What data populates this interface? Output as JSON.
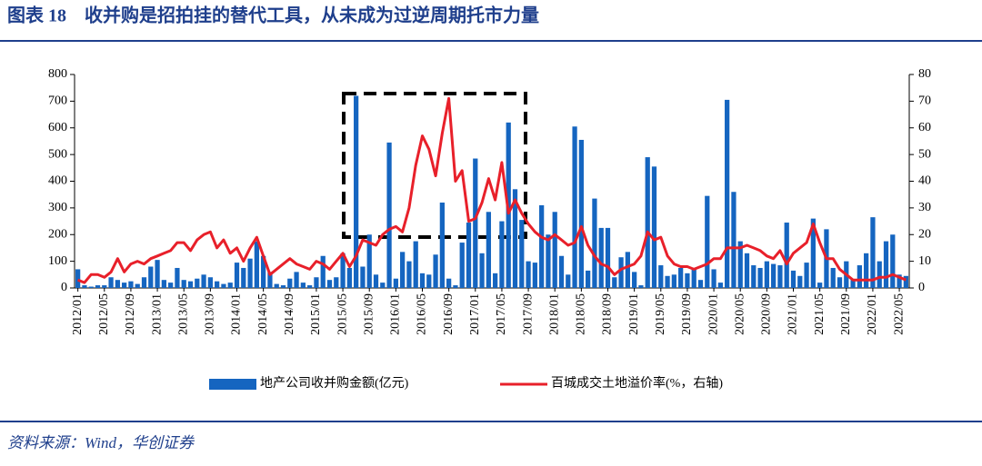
{
  "title": "图表 18　收并购是招拍挂的替代工具，从未成为过逆周期托市力量",
  "source": "资料来源：Wind，华创证券",
  "chart_data": {
    "type": "bar_line",
    "categories": [
      "2012/01",
      null,
      null,
      null,
      "2012/05",
      null,
      null,
      null,
      "2012/09",
      null,
      null,
      null,
      "2013/01",
      null,
      null,
      null,
      "2013/05",
      null,
      null,
      null,
      "2013/09",
      null,
      null,
      null,
      "2014/01",
      null,
      null,
      null,
      "2014/05",
      null,
      null,
      null,
      "2014/09",
      null,
      null,
      null,
      "2015/01",
      null,
      null,
      null,
      "2015/05",
      null,
      null,
      null,
      "2015/09",
      null,
      null,
      null,
      "2016/01",
      null,
      null,
      null,
      "2016/05",
      null,
      null,
      null,
      "2016/09",
      null,
      null,
      null,
      "2017/01",
      null,
      null,
      null,
      "2017/05",
      null,
      null,
      null,
      "2017/09",
      null,
      null,
      null,
      "2018/01",
      null,
      null,
      null,
      "2018/05",
      null,
      null,
      null,
      "2018/09",
      null,
      null,
      null,
      "2019/01",
      null,
      null,
      null,
      "2019/05",
      null,
      null,
      null,
      "2019/09",
      null,
      null,
      null,
      "2020/01",
      null,
      null,
      null,
      "2020/05",
      null,
      null,
      null,
      "2020/09",
      null,
      null,
      null,
      "2021/01",
      null,
      null,
      null,
      "2021/05",
      null,
      null,
      null,
      "2021/09",
      null,
      null,
      null,
      "2022/01",
      null,
      null,
      null,
      "2022/05",
      null
    ],
    "series": [
      {
        "name": "地产公司收并购金额(亿元)",
        "type": "bar",
        "color": "#1565c0",
        "values": [
          70,
          10,
          5,
          10,
          10,
          40,
          30,
          20,
          25,
          15,
          40,
          80,
          105,
          30,
          20,
          75,
          30,
          25,
          35,
          50,
          40,
          25,
          15,
          20,
          95,
          75,
          110,
          175,
          120,
          60,
          15,
          10,
          35,
          60,
          20,
          10,
          40,
          120,
          30,
          40,
          130,
          75,
          720,
          80,
          200,
          50,
          20,
          545,
          35,
          135,
          100,
          175,
          55,
          50,
          125,
          320,
          35,
          10,
          170,
          245,
          485,
          130,
          285,
          55,
          250,
          620,
          370,
          255,
          100,
          95,
          310,
          200,
          285,
          120,
          50,
          605,
          555,
          65,
          335,
          225,
          225,
          40,
          115,
          135,
          60,
          10,
          490,
          455,
          85,
          45,
          50,
          75,
          55,
          70,
          30,
          345,
          70,
          20,
          705,
          360,
          175,
          130,
          85,
          75,
          100,
          90,
          85,
          245,
          65,
          45,
          95,
          260,
          20,
          220,
          75,
          40,
          100,
          30,
          85,
          130,
          265,
          100,
          175,
          200,
          50,
          45
        ]
      },
      {
        "name": "百城成交土地溢价率(%，右轴)",
        "type": "line",
        "axis": "y2",
        "color": "#e8202a",
        "values": [
          3,
          2,
          5,
          5,
          4,
          6,
          11,
          6,
          9,
          10,
          9,
          11,
          12,
          13,
          14,
          17,
          17,
          14,
          18,
          20,
          21,
          15,
          18,
          13,
          15,
          10,
          15,
          19,
          12,
          5,
          7,
          9,
          11,
          9,
          8,
          7,
          10,
          9,
          7,
          10,
          13,
          8,
          12,
          18,
          17,
          16,
          20,
          22,
          23,
          21,
          30,
          46,
          57,
          52,
          42,
          58,
          71,
          40,
          44,
          25,
          26,
          32,
          41,
          33,
          47,
          28,
          33,
          28,
          24,
          21,
          19,
          18,
          20,
          18,
          16,
          17,
          23,
          16,
          12,
          9,
          8,
          5,
          7,
          8,
          9,
          12,
          21,
          18,
          19,
          12,
          9,
          8,
          8,
          7,
          8,
          9,
          11,
          11,
          15,
          15,
          15,
          16,
          15,
          14,
          12,
          11,
          14,
          9,
          13,
          15,
          17,
          24,
          17,
          11,
          11,
          7,
          5,
          3,
          3,
          3,
          3,
          4,
          4,
          5,
          4,
          3
        ]
      }
    ],
    "ylim": [
      0,
      800
    ],
    "yticks": [
      0,
      100,
      200,
      300,
      400,
      500,
      600,
      700,
      800
    ],
    "y2lim": [
      0,
      80
    ],
    "y2ticks": [
      0,
      10,
      20,
      30,
      40,
      50,
      60,
      70,
      80
    ],
    "legend": "bottom"
  }
}
